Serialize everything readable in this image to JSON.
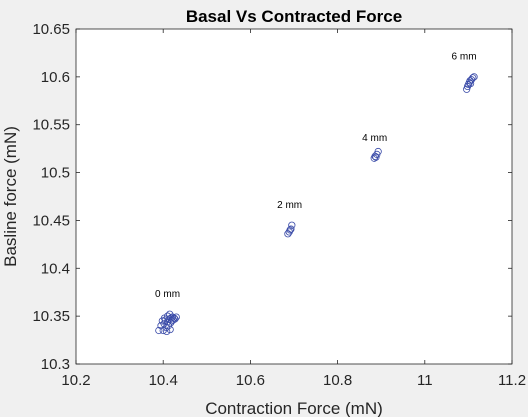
{
  "chart_data": {
    "type": "scatter",
    "title": "Basal Vs Contracted Force",
    "xlabel": "Contraction Force (mN)",
    "ylabel": "Basline force (mN)",
    "xlim": [
      10.2,
      11.2
    ],
    "ylim": [
      10.3,
      10.65
    ],
    "xticks": [
      "10.2",
      "10.4",
      "10.6",
      "10.8",
      "11",
      "11.2"
    ],
    "yticks": [
      "10.3",
      "10.35",
      "10.4",
      "10.45",
      "10.5",
      "10.55",
      "10.6",
      "10.65"
    ],
    "grid": false,
    "marker": "open-circle",
    "marker_color": "#3a4ba8",
    "annotations": [
      {
        "text": "0 mm",
        "x": 10.41,
        "y": 10.37
      },
      {
        "text": "2 mm",
        "x": 10.69,
        "y": 10.463
      },
      {
        "text": "4 mm",
        "x": 10.885,
        "y": 10.533
      },
      {
        "text": "6 mm",
        "x": 11.09,
        "y": 10.618
      }
    ],
    "points": [
      {
        "x": 10.39,
        "y": 10.335
      },
      {
        "x": 10.395,
        "y": 10.34
      },
      {
        "x": 10.398,
        "y": 10.345
      },
      {
        "x": 10.4,
        "y": 10.335
      },
      {
        "x": 10.402,
        "y": 10.342
      },
      {
        "x": 10.405,
        "y": 10.346
      },
      {
        "x": 10.407,
        "y": 10.338
      },
      {
        "x": 10.41,
        "y": 10.344
      },
      {
        "x": 10.41,
        "y": 10.35
      },
      {
        "x": 10.412,
        "y": 10.34
      },
      {
        "x": 10.414,
        "y": 10.347
      },
      {
        "x": 10.415,
        "y": 10.352
      },
      {
        "x": 10.417,
        "y": 10.343
      },
      {
        "x": 10.418,
        "y": 10.348
      },
      {
        "x": 10.42,
        "y": 10.345
      },
      {
        "x": 10.421,
        "y": 10.349
      },
      {
        "x": 10.423,
        "y": 10.346
      },
      {
        "x": 10.425,
        "y": 10.348
      },
      {
        "x": 10.427,
        "y": 10.347
      },
      {
        "x": 10.43,
        "y": 10.349
      },
      {
        "x": 10.408,
        "y": 10.334
      },
      {
        "x": 10.403,
        "y": 10.348
      },
      {
        "x": 10.416,
        "y": 10.336
      },
      {
        "x": 10.686,
        "y": 10.436
      },
      {
        "x": 10.689,
        "y": 10.438
      },
      {
        "x": 10.691,
        "y": 10.44
      },
      {
        "x": 10.693,
        "y": 10.441
      },
      {
        "x": 10.695,
        "y": 10.445
      },
      {
        "x": 10.884,
        "y": 10.515
      },
      {
        "x": 10.886,
        "y": 10.517
      },
      {
        "x": 10.888,
        "y": 10.516
      },
      {
        "x": 10.89,
        "y": 10.519
      },
      {
        "x": 10.893,
        "y": 10.522
      },
      {
        "x": 11.096,
        "y": 10.587
      },
      {
        "x": 11.098,
        "y": 10.59
      },
      {
        "x": 11.1,
        "y": 10.592
      },
      {
        "x": 11.102,
        "y": 10.594
      },
      {
        "x": 11.104,
        "y": 10.596
      },
      {
        "x": 11.107,
        "y": 10.597
      },
      {
        "x": 11.11,
        "y": 10.599
      },
      {
        "x": 11.113,
        "y": 10.6
      },
      {
        "x": 11.105,
        "y": 10.593
      }
    ]
  }
}
